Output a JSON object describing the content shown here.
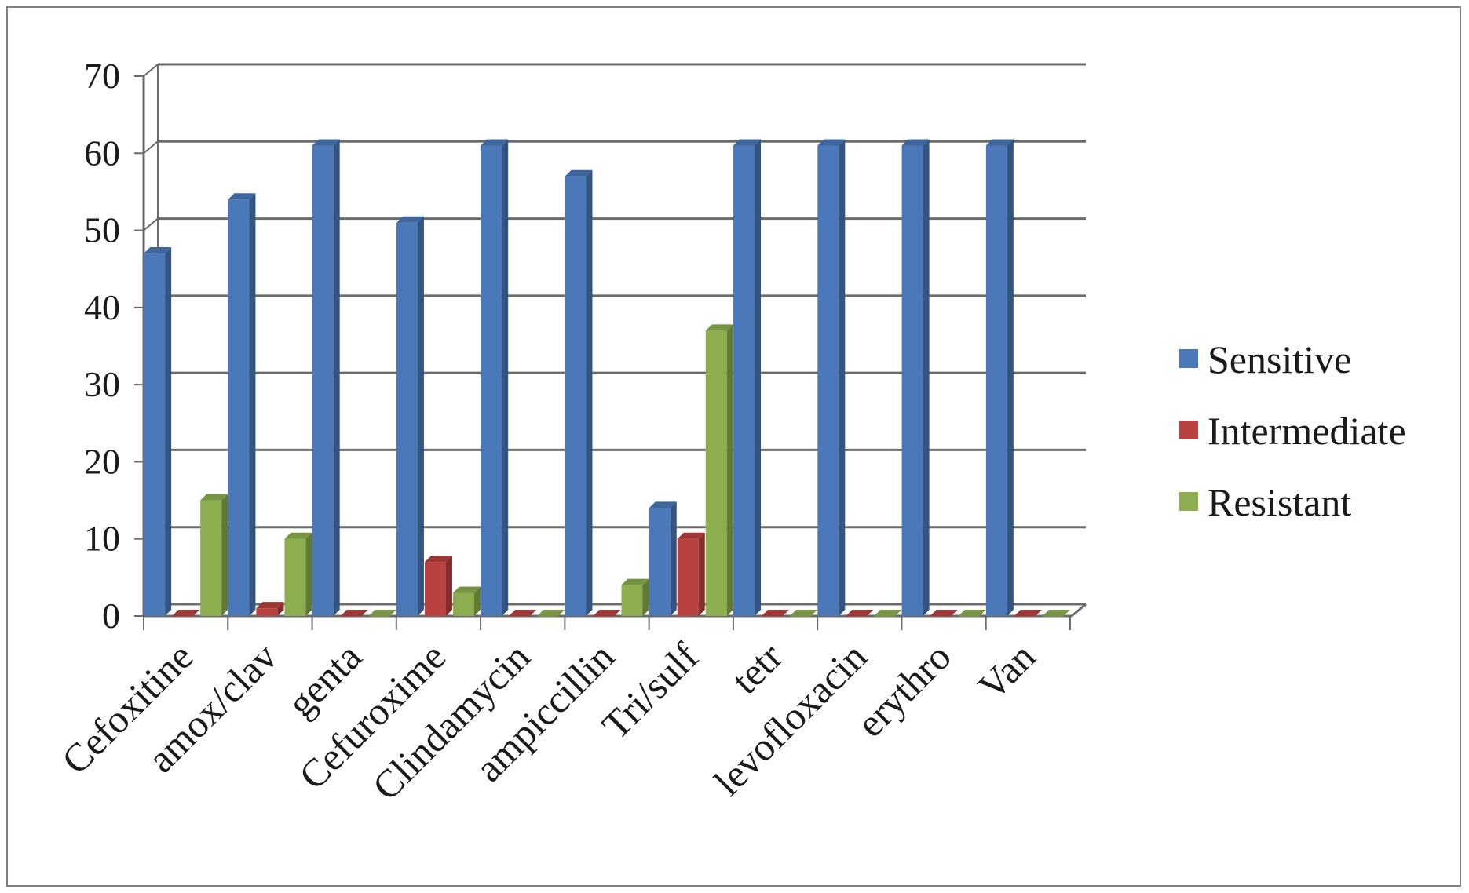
{
  "chart_data": {
    "type": "bar",
    "categories": [
      "Cefoxitine",
      "amox/clav",
      "genta",
      "Cefuroxime",
      "Clindamycin",
      "ampiccillin",
      "Tri/sulf",
      "tetr",
      "levofloxacin",
      "erythro",
      "Van"
    ],
    "series": [
      {
        "name": "Sensitive",
        "color": "#4a78b8",
        "values": [
          47,
          54,
          61,
          51,
          61,
          57,
          14,
          61,
          61,
          61,
          61
        ]
      },
      {
        "name": "Intermediate",
        "color": "#b9413f",
        "values": [
          0,
          1,
          0,
          7,
          0,
          0,
          10,
          0,
          0,
          0,
          0
        ]
      },
      {
        "name": "Resistant",
        "color": "#8cae4e",
        "values": [
          15,
          10,
          0,
          3,
          0,
          4,
          37,
          0,
          0,
          0,
          0
        ]
      }
    ],
    "yticks": [
      "0",
      "10",
      "20",
      "30",
      "40",
      "50",
      "60",
      "70"
    ],
    "ylim": [
      0,
      70
    ],
    "grid": true,
    "legend": "right",
    "style": "3d-column"
  }
}
